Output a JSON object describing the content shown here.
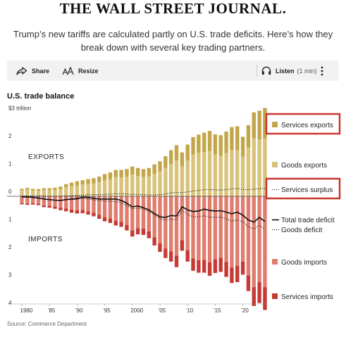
{
  "header": {
    "masthead": "THE WALL STREET JOURNAL.",
    "deck": "Trump’s new tariffs are calculated partly on U.S. trade deficits. Here’s how they break down with several key trading partners."
  },
  "toolbar": {
    "share_label": "Share",
    "resize_label": "Resize",
    "listen_label": "Listen",
    "listen_duration": "(1 min)"
  },
  "chart_title": "U.S. trade balance",
  "source": "Source: Commerce Department",
  "colors": {
    "goods_exports": "#d9c37a",
    "services_exports": "#c3a64a",
    "goods_imports": "#e07d6e",
    "services_imports": "#c53a34",
    "highlight_box": "#c8372d"
  },
  "chart_data": {
    "type": "bar",
    "title": "U.S. trade balance",
    "y_unit": "$ trillion",
    "ylim": [
      -4,
      3.2
    ],
    "y_ticks": [
      {
        "value": 3,
        "label": "$3 trillion"
      },
      {
        "value": 2,
        "label": "2"
      },
      {
        "value": 1,
        "label": "1"
      },
      {
        "value": 0,
        "label": "0"
      },
      {
        "value": -1,
        "label": "1"
      },
      {
        "value": -2,
        "label": "2"
      },
      {
        "value": -3,
        "label": "3"
      },
      {
        "value": -4,
        "label": "4"
      }
    ],
    "x_ticks": [
      {
        "year": 1980,
        "label": "1980"
      },
      {
        "year": 1985,
        "label": "’85"
      },
      {
        "year": 1990,
        "label": "’90"
      },
      {
        "year": 1995,
        "label": "’95"
      },
      {
        "year": 2000,
        "label": "2000"
      },
      {
        "year": 2005,
        "label": "’05"
      },
      {
        "year": 2010,
        "label": "’10"
      },
      {
        "year": 2015,
        "label": "’15"
      },
      {
        "year": 2020,
        "label": "’20"
      }
    ],
    "region_labels": {
      "exports": "EXPORTS",
      "imports": "IMPORTS"
    },
    "years": [
      1980,
      1981,
      1982,
      1983,
      1984,
      1985,
      1986,
      1987,
      1988,
      1989,
      1990,
      1991,
      1992,
      1993,
      1994,
      1995,
      1996,
      1997,
      1998,
      1999,
      2000,
      2001,
      2002,
      2003,
      2004,
      2005,
      2006,
      2007,
      2008,
      2009,
      2010,
      2011,
      2012,
      2013,
      2014,
      2015,
      2016,
      2017,
      2018,
      2019,
      2020,
      2021,
      2022,
      2023,
      2024
    ],
    "series": [
      {
        "name": "Services exports",
        "kind": "bar",
        "values": [
          0.05,
          0.06,
          0.06,
          0.06,
          0.07,
          0.07,
          0.08,
          0.09,
          0.11,
          0.13,
          0.15,
          0.16,
          0.18,
          0.19,
          0.2,
          0.22,
          0.24,
          0.26,
          0.27,
          0.28,
          0.29,
          0.29,
          0.29,
          0.3,
          0.34,
          0.37,
          0.42,
          0.5,
          0.55,
          0.51,
          0.57,
          0.63,
          0.66,
          0.7,
          0.72,
          0.72,
          0.74,
          0.78,
          0.82,
          0.87,
          0.71,
          0.8,
          0.93,
          1.03,
          1.1
        ]
      },
      {
        "name": "Goods exports",
        "kind": "bar",
        "values": [
          0.22,
          0.24,
          0.21,
          0.2,
          0.22,
          0.22,
          0.23,
          0.26,
          0.33,
          0.36,
          0.39,
          0.42,
          0.44,
          0.46,
          0.51,
          0.58,
          0.62,
          0.69,
          0.68,
          0.7,
          0.78,
          0.73,
          0.69,
          0.72,
          0.81,
          0.89,
          1.02,
          1.16,
          1.29,
          1.07,
          1.29,
          1.5,
          1.56,
          1.59,
          1.63,
          1.51,
          1.46,
          1.55,
          1.67,
          1.65,
          1.43,
          1.76,
          2.09,
          2.05,
          2.08
        ]
      },
      {
        "name": "Goods imports",
        "kind": "bar",
        "values": [
          -0.25,
          -0.26,
          -0.25,
          -0.27,
          -0.33,
          -0.34,
          -0.37,
          -0.41,
          -0.44,
          -0.48,
          -0.5,
          -0.49,
          -0.54,
          -0.59,
          -0.67,
          -0.75,
          -0.8,
          -0.88,
          -0.92,
          -1.03,
          -1.23,
          -1.15,
          -1.16,
          -1.26,
          -1.48,
          -1.69,
          -1.88,
          -1.98,
          -2.14,
          -1.58,
          -1.94,
          -2.24,
          -2.3,
          -2.29,
          -2.38,
          -2.27,
          -2.21,
          -2.36,
          -2.56,
          -2.5,
          -2.35,
          -2.85,
          -3.27,
          -3.09,
          -3.27
        ]
      },
      {
        "name": "Services imports",
        "kind": "bar",
        "values": [
          -0.04,
          -0.05,
          -0.05,
          -0.05,
          -0.06,
          -0.07,
          -0.08,
          -0.09,
          -0.1,
          -0.11,
          -0.12,
          -0.12,
          -0.12,
          -0.13,
          -0.14,
          -0.15,
          -0.16,
          -0.17,
          -0.18,
          -0.2,
          -0.22,
          -0.22,
          -0.23,
          -0.25,
          -0.29,
          -0.31,
          -0.34,
          -0.37,
          -0.41,
          -0.38,
          -0.41,
          -0.44,
          -0.45,
          -0.46,
          -0.48,
          -0.49,
          -0.51,
          -0.54,
          -0.56,
          -0.59,
          -0.47,
          -0.56,
          -0.68,
          -0.75,
          -0.82
        ]
      },
      {
        "name": "Total trade deficit",
        "kind": "line",
        "values": [
          -0.02,
          -0.02,
          -0.04,
          -0.06,
          -0.1,
          -0.12,
          -0.14,
          -0.15,
          -0.12,
          -0.1,
          -0.08,
          -0.03,
          -0.04,
          -0.07,
          -0.1,
          -0.1,
          -0.1,
          -0.1,
          -0.15,
          -0.25,
          -0.38,
          -0.35,
          -0.41,
          -0.49,
          -0.62,
          -0.74,
          -0.76,
          -0.69,
          -0.71,
          -0.38,
          -0.49,
          -0.55,
          -0.53,
          -0.46,
          -0.51,
          -0.53,
          -0.52,
          -0.57,
          -0.63,
          -0.57,
          -0.68,
          -0.85,
          -0.93,
          -0.76,
          -0.91
        ]
      },
      {
        "name": "Services surplus",
        "kind": "dotted-line",
        "values": [
          0.01,
          0.01,
          0.01,
          0.01,
          0.01,
          0.0,
          0.0,
          0.0,
          0.01,
          0.02,
          0.03,
          0.04,
          0.06,
          0.06,
          0.06,
          0.07,
          0.08,
          0.09,
          0.09,
          0.08,
          0.07,
          0.07,
          0.06,
          0.05,
          0.05,
          0.06,
          0.08,
          0.13,
          0.14,
          0.13,
          0.16,
          0.19,
          0.21,
          0.24,
          0.24,
          0.23,
          0.23,
          0.24,
          0.26,
          0.28,
          0.24,
          0.24,
          0.25,
          0.28,
          0.28
        ]
      },
      {
        "name": "Goods deficit",
        "kind": "dotted-line",
        "values": [
          -0.03,
          -0.03,
          -0.04,
          -0.07,
          -0.11,
          -0.12,
          -0.14,
          -0.15,
          -0.11,
          -0.12,
          -0.11,
          -0.07,
          -0.1,
          -0.13,
          -0.16,
          -0.17,
          -0.18,
          -0.19,
          -0.24,
          -0.33,
          -0.45,
          -0.42,
          -0.47,
          -0.54,
          -0.67,
          -0.8,
          -0.86,
          -0.82,
          -0.85,
          -0.51,
          -0.65,
          -0.74,
          -0.74,
          -0.7,
          -0.75,
          -0.76,
          -0.75,
          -0.81,
          -0.89,
          -0.85,
          -0.92,
          -1.09,
          -1.18,
          -1.04,
          -1.19
        ]
      }
    ],
    "legend": [
      {
        "label": "Services exports",
        "swatch": "services_exports",
        "highlighted": true
      },
      {
        "label": "Goods exports",
        "swatch": "goods_exports",
        "highlighted": false
      },
      {
        "label": "Services surplus",
        "swatch": "dotted",
        "highlighted": true
      },
      {
        "label": "Total trade deficit",
        "swatch": "solid",
        "highlighted": false
      },
      {
        "label": "Goods deficit",
        "swatch": "dotted",
        "highlighted": false
      },
      {
        "label": "Goods imports",
        "swatch": "goods_imports",
        "highlighted": false
      },
      {
        "label": "Services imports",
        "swatch": "services_imports",
        "highlighted": false
      }
    ],
    "legend_placement": "right",
    "grid": false
  }
}
